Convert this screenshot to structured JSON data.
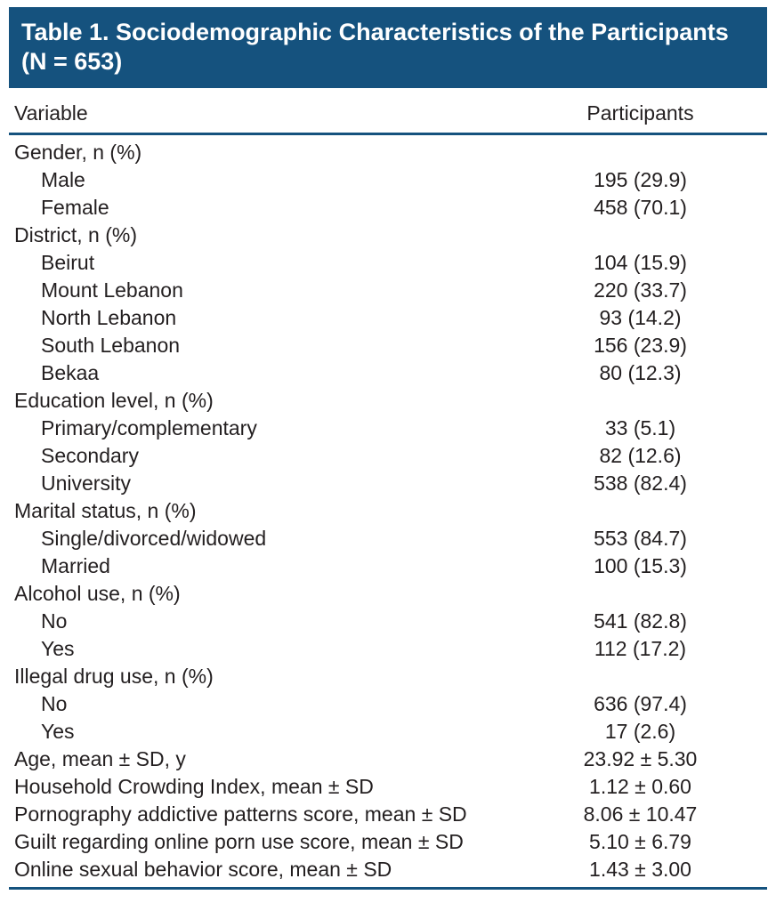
{
  "title": "Table 1. Sociodemographic Characteristics of the Participants (N = 653)",
  "columns": {
    "variable": "Variable",
    "participants": "Participants"
  },
  "colors": {
    "accent": "#15527e",
    "text": "#231f20"
  },
  "rows": [
    {
      "label": "Gender, n (%)",
      "value": "",
      "indent": false
    },
    {
      "label": "Male",
      "value": "195 (29.9)",
      "indent": true
    },
    {
      "label": "Female",
      "value": "458 (70.1)",
      "indent": true
    },
    {
      "label": "District, n (%)",
      "value": "",
      "indent": false
    },
    {
      "label": "Beirut",
      "value": "104 (15.9)",
      "indent": true
    },
    {
      "label": "Mount Lebanon",
      "value": "220 (33.7)",
      "indent": true
    },
    {
      "label": "North Lebanon",
      "value": "93 (14.2)",
      "indent": true
    },
    {
      "label": "South Lebanon",
      "value": "156 (23.9)",
      "indent": true
    },
    {
      "label": "Bekaa",
      "value": "80 (12.3)",
      "indent": true
    },
    {
      "label": "Education level, n (%)",
      "value": "",
      "indent": false
    },
    {
      "label": "Primary/complementary",
      "value": "33 (5.1)",
      "indent": true
    },
    {
      "label": "Secondary",
      "value": "82 (12.6)",
      "indent": true
    },
    {
      "label": "University",
      "value": "538 (82.4)",
      "indent": true
    },
    {
      "label": "Marital status, n (%)",
      "value": "",
      "indent": false
    },
    {
      "label": "Single/divorced/widowed",
      "value": "553 (84.7)",
      "indent": true
    },
    {
      "label": "Married",
      "value": "100 (15.3)",
      "indent": true
    },
    {
      "label": "Alcohol use, n (%)",
      "value": "",
      "indent": false
    },
    {
      "label": "No",
      "value": "541 (82.8)",
      "indent": true
    },
    {
      "label": "Yes",
      "value": "112 (17.2)",
      "indent": true
    },
    {
      "label": "Illegal drug use, n (%)",
      "value": "",
      "indent": false
    },
    {
      "label": "No",
      "value": "636 (97.4)",
      "indent": true
    },
    {
      "label": "Yes",
      "value": "17 (2.6)",
      "indent": true
    },
    {
      "label": "Age, mean ± SD, y",
      "value": "23.92 ± 5.30",
      "indent": false
    },
    {
      "label": "Household Crowding Index, mean ± SD",
      "value": "1.12 ± 0.60",
      "indent": false
    },
    {
      "label": "Pornography addictive patterns score, mean ± SD",
      "value": "8.06 ± 10.47",
      "indent": false
    },
    {
      "label": "Guilt regarding online porn use score, mean ± SD",
      "value": "5.10 ± 6.79",
      "indent": false
    },
    {
      "label": "Online sexual behavior score, mean ± SD",
      "value": "1.43 ± 3.00",
      "indent": false
    }
  ]
}
